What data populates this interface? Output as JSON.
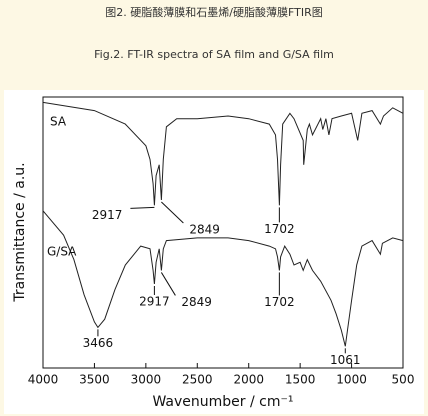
{
  "chart_data": {
    "type": "line",
    "caption_cn": "图2. 硬脂酸薄膜和石墨烯/硬脂酸薄膜FTIR图",
    "caption_en": "Fig.2. FT-IR spectra of SA film and G/SA film",
    "x_label": "Wavenumber / cm⁻¹",
    "y_label": "Transmittance / a.u.",
    "xlim": [
      4000,
      500
    ],
    "xticks": [
      4000,
      3500,
      3000,
      2500,
      2000,
      1500,
      1000,
      500
    ],
    "ylim": [
      0,
      100
    ],
    "series": [
      {
        "name": "SA",
        "color": "#222222",
        "x": [
          4000,
          3500,
          3200,
          3000,
          2960,
          2930,
          2917,
          2900,
          2870,
          2849,
          2830,
          2800,
          2700,
          2500,
          2200,
          2000,
          1800,
          1740,
          1720,
          1702,
          1690,
          1670,
          1600,
          1560,
          1470,
          1465,
          1430,
          1410,
          1380,
          1300,
          1280,
          1250,
          1220,
          1190,
          1100,
          1000,
          940,
          900,
          800,
          720,
          690,
          600,
          500
        ],
        "values": [
          98,
          95,
          90,
          82,
          77,
          68,
          60,
          71,
          75,
          62,
          77,
          89,
          92,
          92,
          93,
          92,
          90,
          86,
          77,
          60,
          75,
          90,
          94,
          92,
          84,
          75,
          88,
          90,
          86,
          92,
          88,
          92,
          86,
          92,
          93,
          94,
          84,
          94,
          95,
          90,
          93,
          96,
          94
        ],
        "peaks": [
          2917,
          2849,
          1702
        ]
      },
      {
        "name": "G/SA",
        "color": "#222222",
        "x": [
          4000,
          3800,
          3700,
          3600,
          3500,
          3466,
          3400,
          3300,
          3200,
          3050,
          2960,
          2930,
          2917,
          2900,
          2870,
          2849,
          2830,
          2800,
          2500,
          2200,
          2000,
          1800,
          1740,
          1720,
          1702,
          1690,
          1650,
          1600,
          1560,
          1500,
          1470,
          1430,
          1380,
          1300,
          1200,
          1150,
          1100,
          1061,
          1040,
          1000,
          950,
          900,
          800,
          720,
          700,
          600,
          500
        ],
        "values": [
          58,
          49,
          40,
          27,
          17,
          15,
          18,
          29,
          38,
          45,
          44,
          36,
          31,
          39,
          44,
          36,
          44,
          47,
          48,
          48,
          47,
          45,
          44,
          41,
          36,
          41,
          45,
          42,
          38,
          39,
          36,
          40,
          36,
          32,
          25,
          20,
          14,
          8,
          14,
          25,
          38,
          45,
          47,
          42,
          46,
          48,
          47
        ],
        "peaks": [
          3466,
          2917,
          2849,
          1702,
          1061
        ]
      }
    ]
  }
}
